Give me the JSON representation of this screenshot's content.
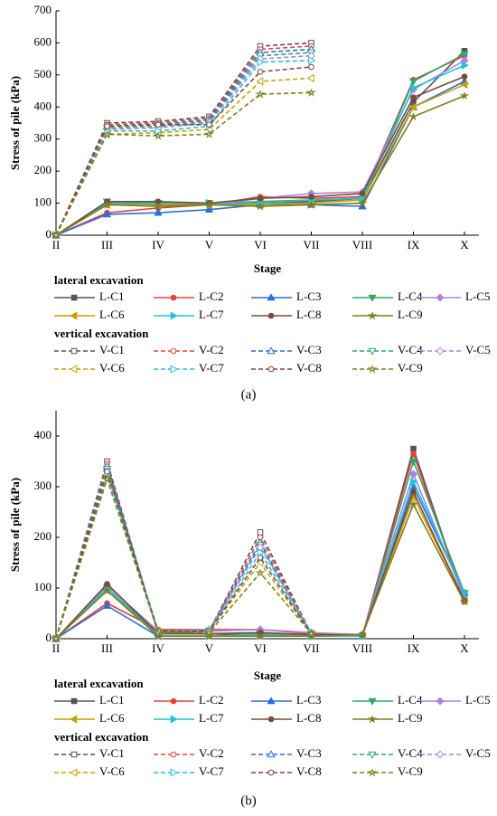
{
  "chart_data": [
    {
      "type": "line",
      "x_label": "Stage",
      "y_label": "Stress of pile (kPa)",
      "caption": "(a)",
      "categories": [
        "II",
        "III",
        "IV",
        "V",
        "VI",
        "VII",
        "VIII",
        "IX",
        "X"
      ],
      "ylim": [
        0,
        700
      ],
      "yticks": [
        0,
        100,
        200,
        300,
        400,
        500,
        600,
        700
      ],
      "legend_titles": [
        "lateral excavation",
        "vertical excavation"
      ],
      "series": [
        {
          "name": "L-C1",
          "color": "#555555",
          "marker": "square",
          "marker_fill": "filled",
          "linestyle": "solid",
          "values": [
            0,
            100,
            100,
            100,
            100,
            105,
            115,
            415,
            575
          ]
        },
        {
          "name": "L-C2",
          "color": "#e8403a",
          "marker": "circle",
          "marker_fill": "filled",
          "linestyle": "solid",
          "values": [
            0,
            70,
            85,
            95,
            120,
            115,
            120,
            485,
            560
          ]
        },
        {
          "name": "L-C3",
          "color": "#2a6fdb",
          "marker": "triangle-up",
          "marker_fill": "filled",
          "linestyle": "solid",
          "values": [
            0,
            65,
            70,
            80,
            95,
            95,
            90,
            400,
            480
          ]
        },
        {
          "name": "L-C4",
          "color": "#2ea86b",
          "marker": "triangle-down",
          "marker_fill": "filled",
          "linestyle": "solid",
          "values": [
            0,
            105,
            100,
            100,
            105,
            110,
            115,
            480,
            565
          ]
        },
        {
          "name": "L-C5",
          "color": "#b07fe0",
          "marker": "diamond",
          "marker_fill": "filled",
          "linestyle": "solid",
          "values": [
            0,
            95,
            95,
            95,
            115,
            130,
            135,
            455,
            545
          ]
        },
        {
          "name": "L-C6",
          "color": "#c9a000",
          "marker": "triangle-left",
          "marker_fill": "filled",
          "linestyle": "solid",
          "values": [
            0,
            95,
            95,
            95,
            95,
            100,
            110,
            400,
            470
          ]
        },
        {
          "name": "L-C7",
          "color": "#22c3d6",
          "marker": "triangle-right",
          "marker_fill": "filled",
          "linestyle": "solid",
          "values": [
            0,
            100,
            100,
            100,
            100,
            110,
            115,
            460,
            530
          ]
        },
        {
          "name": "L-C8",
          "color": "#7a4a3a",
          "marker": "circle",
          "marker_fill": "filled",
          "linestyle": "solid",
          "values": [
            0,
            105,
            105,
            100,
            115,
            120,
            130,
            430,
            495
          ]
        },
        {
          "name": "L-C9",
          "color": "#7f7f20",
          "marker": "star",
          "marker_fill": "filled",
          "linestyle": "solid",
          "values": [
            0,
            95,
            90,
            95,
            90,
            95,
            100,
            370,
            435
          ]
        },
        {
          "name": "V-C1",
          "color": "#555555",
          "marker": "square",
          "marker_fill": "open",
          "linestyle": "dashed",
          "values": [
            0,
            350,
            355,
            370,
            590,
            600,
            null,
            null,
            null
          ]
        },
        {
          "name": "V-C2",
          "color": "#e8403a",
          "marker": "circle",
          "marker_fill": "open",
          "linestyle": "dashed",
          "values": [
            0,
            345,
            350,
            365,
            580,
            590,
            null,
            null,
            null
          ]
        },
        {
          "name": "V-C3",
          "color": "#2a6fdb",
          "marker": "triangle-up",
          "marker_fill": "open",
          "linestyle": "dashed",
          "values": [
            0,
            340,
            345,
            360,
            570,
            580,
            null,
            null,
            null
          ]
        },
        {
          "name": "V-C4",
          "color": "#2ea86b",
          "marker": "triangle-down",
          "marker_fill": "open",
          "linestyle": "dashed",
          "values": [
            0,
            335,
            340,
            355,
            560,
            570,
            null,
            null,
            null
          ]
        },
        {
          "name": "V-C5",
          "color": "#b07fe0",
          "marker": "diamond",
          "marker_fill": "open",
          "linestyle": "dashed",
          "values": [
            0,
            330,
            335,
            350,
            550,
            560,
            null,
            null,
            null
          ]
        },
        {
          "name": "V-C6",
          "color": "#c9a000",
          "marker": "triangle-left",
          "marker_fill": "open",
          "linestyle": "dashed",
          "values": [
            0,
            315,
            320,
            330,
            480,
            490,
            null,
            null,
            null
          ]
        },
        {
          "name": "V-C7",
          "color": "#22c3d6",
          "marker": "triangle-right",
          "marker_fill": "open",
          "linestyle": "dashed",
          "values": [
            0,
            325,
            325,
            340,
            540,
            545,
            null,
            null,
            null
          ]
        },
        {
          "name": "V-C8",
          "color": "#7a4a3a",
          "marker": "circle",
          "marker_fill": "open",
          "linestyle": "dashed",
          "values": [
            0,
            340,
            345,
            345,
            510,
            525,
            null,
            null,
            null
          ]
        },
        {
          "name": "V-C9",
          "color": "#7f7f20",
          "marker": "star",
          "marker_fill": "open",
          "linestyle": "dashed",
          "values": [
            0,
            315,
            310,
            315,
            440,
            445,
            null,
            null,
            null
          ]
        }
      ]
    },
    {
      "type": "line",
      "x_label": "Stage",
      "y_label": "Stress of pile (kPa)",
      "caption": "(b)",
      "categories": [
        "II",
        "III",
        "IV",
        "V",
        "VI",
        "VII",
        "VIII",
        "IX",
        "X"
      ],
      "ylim": [
        0,
        450
      ],
      "yticks": [
        0,
        100,
        200,
        300,
        400
      ],
      "legend_titles": [
        "lateral excavation",
        "vertical excavation"
      ],
      "series": [
        {
          "name": "L-C1",
          "color": "#555555",
          "marker": "square",
          "marker_fill": "filled",
          "linestyle": "solid",
          "values": [
            0,
            100,
            10,
            10,
            5,
            5,
            5,
            375,
            75
          ]
        },
        {
          "name": "L-C2",
          "color": "#e8403a",
          "marker": "circle",
          "marker_fill": "filled",
          "linestyle": "solid",
          "values": [
            0,
            70,
            18,
            18,
            18,
            10,
            5,
            365,
            75
          ]
        },
        {
          "name": "L-C3",
          "color": "#2a6fdb",
          "marker": "triangle-up",
          "marker_fill": "filled",
          "linestyle": "solid",
          "values": [
            0,
            65,
            5,
            5,
            5,
            5,
            5,
            300,
            90
          ]
        },
        {
          "name": "L-C4",
          "color": "#2ea86b",
          "marker": "triangle-down",
          "marker_fill": "filled",
          "linestyle": "solid",
          "values": [
            0,
            100,
            10,
            10,
            10,
            5,
            5,
            350,
            90
          ]
        },
        {
          "name": "L-C5",
          "color": "#b07fe0",
          "marker": "diamond",
          "marker_fill": "filled",
          "linestyle": "solid",
          "values": [
            0,
            105,
            15,
            15,
            18,
            12,
            8,
            325,
            80
          ]
        },
        {
          "name": "L-C6",
          "color": "#c9a000",
          "marker": "triangle-left",
          "marker_fill": "filled",
          "linestyle": "solid",
          "values": [
            0,
            95,
            5,
            5,
            8,
            5,
            5,
            280,
            75
          ]
        },
        {
          "name": "L-C7",
          "color": "#22c3d6",
          "marker": "triangle-right",
          "marker_fill": "filled",
          "linestyle": "solid",
          "values": [
            0,
            100,
            5,
            5,
            8,
            5,
            5,
            310,
            90
          ]
        },
        {
          "name": "L-C8",
          "color": "#7a4a3a",
          "marker": "circle",
          "marker_fill": "filled",
          "linestyle": "solid",
          "values": [
            0,
            108,
            10,
            10,
            12,
            8,
            8,
            290,
            75
          ]
        },
        {
          "name": "L-C9",
          "color": "#7f7f20",
          "marker": "star",
          "marker_fill": "filled",
          "linestyle": "solid",
          "values": [
            0,
            95,
            5,
            5,
            5,
            5,
            8,
            265,
            72
          ]
        },
        {
          "name": "V-C1",
          "color": "#555555",
          "marker": "square",
          "marker_fill": "open",
          "linestyle": "dashed",
          "values": [
            0,
            350,
            10,
            15,
            210,
            10,
            null,
            null,
            null
          ]
        },
        {
          "name": "V-C2",
          "color": "#e8403a",
          "marker": "circle",
          "marker_fill": "open",
          "linestyle": "dashed",
          "values": [
            0,
            345,
            10,
            15,
            200,
            10,
            null,
            null,
            null
          ]
        },
        {
          "name": "V-C3",
          "color": "#2a6fdb",
          "marker": "triangle-up",
          "marker_fill": "open",
          "linestyle": "dashed",
          "values": [
            0,
            340,
            12,
            15,
            190,
            10,
            null,
            null,
            null
          ]
        },
        {
          "name": "V-C4",
          "color": "#2ea86b",
          "marker": "triangle-down",
          "marker_fill": "open",
          "linestyle": "dashed",
          "values": [
            0,
            335,
            12,
            15,
            185,
            10,
            null,
            null,
            null
          ]
        },
        {
          "name": "V-C5",
          "color": "#b07fe0",
          "marker": "diamond",
          "marker_fill": "open",
          "linestyle": "dashed",
          "values": [
            0,
            330,
            15,
            18,
            180,
            12,
            null,
            null,
            null
          ]
        },
        {
          "name": "V-C6",
          "color": "#c9a000",
          "marker": "triangle-left",
          "marker_fill": "open",
          "linestyle": "dashed",
          "values": [
            0,
            315,
            15,
            15,
            150,
            10,
            null,
            null,
            null
          ]
        },
        {
          "name": "V-C7",
          "color": "#22c3d6",
          "marker": "triangle-right",
          "marker_fill": "open",
          "linestyle": "dashed",
          "values": [
            0,
            325,
            15,
            15,
            170,
            10,
            null,
            null,
            null
          ]
        },
        {
          "name": "V-C8",
          "color": "#7a4a3a",
          "marker": "circle",
          "marker_fill": "open",
          "linestyle": "dashed",
          "values": [
            0,
            330,
            15,
            15,
            160,
            10,
            null,
            null,
            null
          ]
        },
        {
          "name": "V-C9",
          "color": "#7f7f20",
          "marker": "star",
          "marker_fill": "open",
          "linestyle": "dashed",
          "values": [
            0,
            315,
            12,
            12,
            130,
            10,
            null,
            null,
            null
          ]
        }
      ]
    }
  ]
}
